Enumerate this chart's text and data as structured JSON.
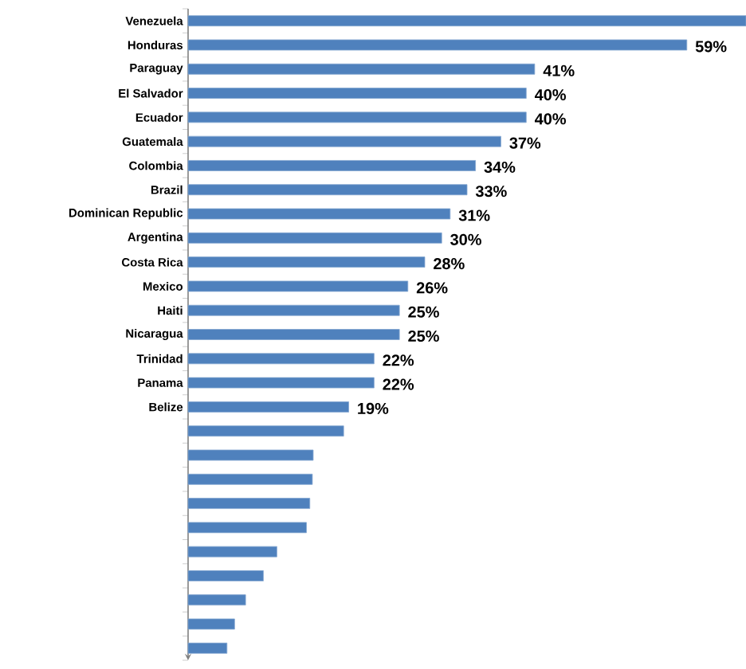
{
  "chart_data": {
    "type": "bar",
    "orientation": "horizontal",
    "categories": [
      "Venezuela",
      "Honduras",
      "Paraguay",
      "El Salvador",
      "Ecuador",
      "Guatemala",
      "Colombia",
      "Brazil",
      "Dominican Republic",
      "Argentina",
      "Costa Rica",
      "Mexico",
      "Haiti",
      "Nicaragua",
      "Trinidad",
      "Panama",
      "Belize",
      null,
      null,
      null,
      null,
      null,
      null,
      null,
      null,
      null,
      null
    ],
    "values": [
      66,
      59,
      41,
      40,
      40,
      37,
      34,
      33,
      31,
      30,
      28,
      26,
      25,
      25,
      22,
      22,
      19,
      18.4,
      14.8,
      14.7,
      14.4,
      14.0,
      10.5,
      8.9,
      6.8,
      5.5,
      4.6
    ],
    "value_labels": [
      null,
      "59%",
      "41%",
      "40%",
      "40%",
      "37%",
      "34%",
      "33%",
      "31%",
      "30%",
      "28%",
      "26%",
      "25%",
      "25%",
      "22%",
      "22%",
      "19%",
      null,
      null,
      null,
      null,
      null,
      null,
      null,
      null,
      null,
      null
    ],
    "color": "#4f81bd",
    "xlim": [
      0,
      66
    ],
    "tick_labels": "y"
  }
}
